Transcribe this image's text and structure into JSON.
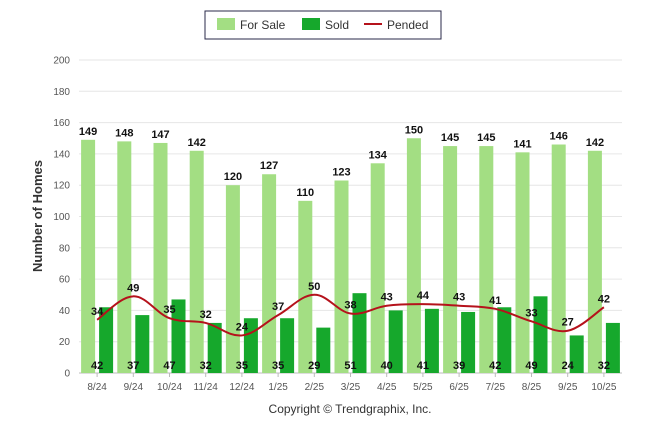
{
  "chart_data": {
    "type": "bar",
    "title": "",
    "xlabel": "",
    "ylabel": "Number of Homes",
    "ylim": [
      0,
      200
    ],
    "yticks": [
      0,
      20,
      40,
      60,
      80,
      100,
      120,
      140,
      160,
      180,
      200
    ],
    "categories": [
      "8/24",
      "9/24",
      "10/24",
      "11/24",
      "12/24",
      "1/25",
      "2/25",
      "3/25",
      "4/25",
      "5/25",
      "6/25",
      "7/25",
      "8/25",
      "9/25",
      "10/25"
    ],
    "series": [
      {
        "name": "For Sale",
        "type": "bar",
        "color": "#a3de83",
        "values": [
          149,
          148,
          147,
          142,
          120,
          127,
          110,
          123,
          134,
          150,
          145,
          145,
          141,
          146,
          142
        ]
      },
      {
        "name": "Sold",
        "type": "bar",
        "color": "#16a82c",
        "values": [
          42,
          37,
          47,
          32,
          35,
          35,
          29,
          51,
          40,
          41,
          39,
          42,
          49,
          24,
          32
        ]
      },
      {
        "name": "Pended",
        "type": "line",
        "color": "#b5121b",
        "values": [
          34,
          49,
          35,
          32,
          24,
          37,
          50,
          38,
          43,
          44,
          43,
          41,
          33,
          27,
          42
        ]
      }
    ],
    "legend": [
      "For Sale",
      "Sold",
      "Pended"
    ],
    "legend_position": "top-center",
    "grid": true
  },
  "footer": {
    "copyright": "Copyright © Trendgraphix, Inc."
  }
}
